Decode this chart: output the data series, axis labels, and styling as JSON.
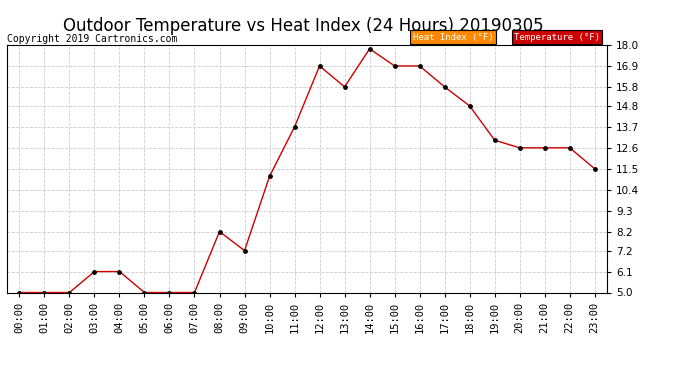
{
  "title": "Outdoor Temperature vs Heat Index (24 Hours) 20190305",
  "copyright": "Copyright 2019 Cartronics.com",
  "hours": [
    "00:00",
    "01:00",
    "02:00",
    "03:00",
    "04:00",
    "05:00",
    "06:00",
    "07:00",
    "08:00",
    "09:00",
    "10:00",
    "11:00",
    "12:00",
    "13:00",
    "14:00",
    "15:00",
    "16:00",
    "17:00",
    "18:00",
    "19:00",
    "20:00",
    "21:00",
    "22:00",
    "23:00"
  ],
  "temperature": [
    5.0,
    5.0,
    5.0,
    6.1,
    6.1,
    5.0,
    5.0,
    5.0,
    8.2,
    7.2,
    11.1,
    13.7,
    16.9,
    15.8,
    17.8,
    16.9,
    16.9,
    15.8,
    14.8,
    13.0,
    12.6,
    12.6,
    12.6,
    11.5
  ],
  "ylim": [
    5.0,
    18.0
  ],
  "yticks": [
    5.0,
    6.1,
    7.2,
    8.2,
    9.3,
    10.4,
    11.5,
    12.6,
    13.7,
    14.8,
    15.8,
    16.9,
    18.0
  ],
  "line_color": "#cc0000",
  "marker_color": "#000000",
  "background_color": "#ffffff",
  "grid_color": "#cccccc",
  "legend_heat_bg": "#ff8800",
  "legend_temp_bg": "#cc0000",
  "legend_heat_text": "Heat Index (°F)",
  "legend_temp_text": "Temperature (°F)",
  "title_fontsize": 12,
  "copyright_fontsize": 7,
  "tick_fontsize": 7.5
}
